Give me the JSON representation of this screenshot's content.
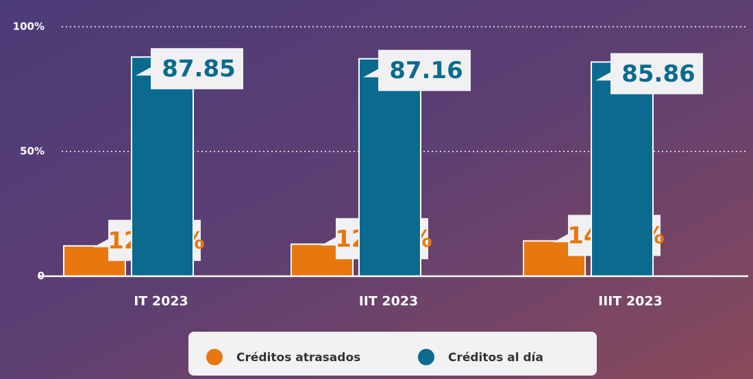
{
  "chart_data": {
    "type": "bar",
    "categories": [
      "IT 2023",
      "IIT 2023",
      "IIIT 2023"
    ],
    "series": [
      {
        "name": "Créditos atrasados",
        "color": "#e8770e",
        "values": [
          12.15,
          12.84,
          14.14
        ],
        "value_labels": [
          "12.15%",
          "12.84%",
          "14.14%"
        ]
      },
      {
        "name": "Créditos al día",
        "color": "#0a6b8f",
        "values": [
          87.85,
          87.16,
          85.86
        ]
      }
    ],
    "ylim": [
      0,
      100
    ],
    "yticks": [
      0,
      {
        "value": 50,
        "label": "50%"
      },
      {
        "value": 100,
        "label": "100%"
      }
    ],
    "grid": true
  }
}
